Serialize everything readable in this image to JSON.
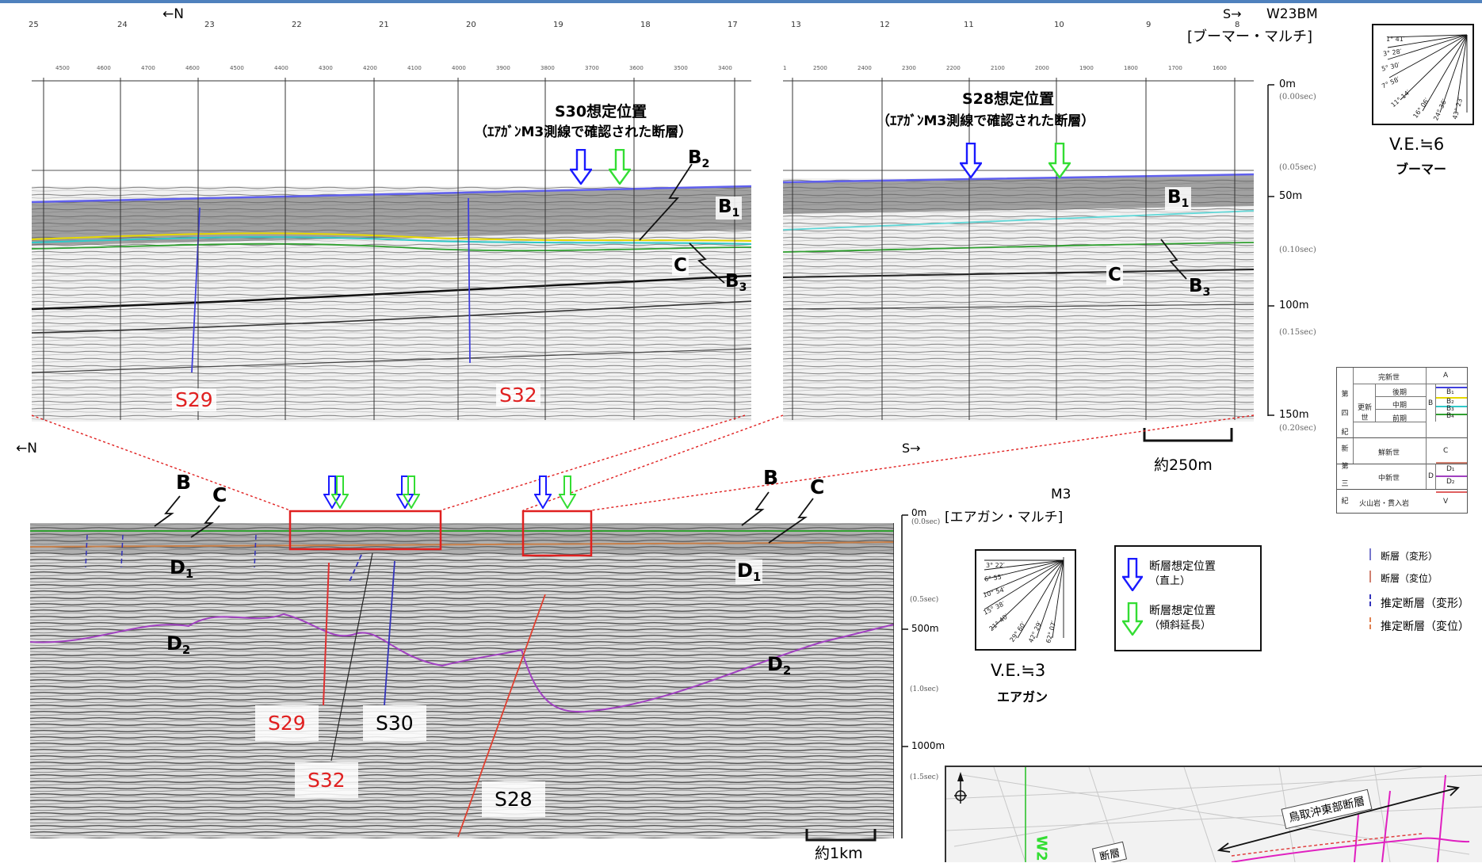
{
  "top_section": {
    "north_label": "←N",
    "south_label": "S→",
    "line_name": "W23BM",
    "source_label": "[ブーマー・マルチ]",
    "shot_numbers_left": [
      "25",
      "24",
      "23",
      "22",
      "21",
      "20",
      "19",
      "18",
      "17"
    ],
    "shot_numbers_right": [
      "13",
      "12",
      "11",
      "10",
      "9",
      "8"
    ],
    "cdp_left": [
      "4500",
      "4600",
      "4700",
      "4600",
      "4500",
      "4400",
      "4300",
      "4200",
      "4100",
      "4000",
      "3900",
      "3800",
      "3700",
      "3600",
      "3500",
      "3400"
    ],
    "cdp_right": [
      "1",
      "2500",
      "2400",
      "2300",
      "2200",
      "2100",
      "2000",
      "1900",
      "1800",
      "1700",
      "1600"
    ],
    "s30_title": "S30想定位置",
    "s30_subtitle": "（ｴｱｶﾞﾝM3測線で確認された断層）",
    "s28_title": "S28想定位置",
    "s28_subtitle": "（ｴｱｶﾞﾝM3測線で確認された断層）",
    "fault_labels": {
      "s29": "S29",
      "s32": "S32"
    },
    "horizons": {
      "b": "B",
      "c": "C",
      "sub1": "1",
      "sub2": "2",
      "sub3": "3"
    },
    "depth_scale": [
      {
        "depth": "0m",
        "time": "(0.00sec)"
      },
      {
        "depth": "",
        "time": "(0.05sec)"
      },
      {
        "depth": "50m",
        "time": ""
      },
      {
        "depth": "",
        "time": "(0.10sec)"
      },
      {
        "depth": "100m",
        "time": ""
      },
      {
        "depth": "",
        "time": "(0.15sec)"
      },
      {
        "depth": "150m",
        "time": "(0.20sec)"
      }
    ],
    "scale_bar_label": "約250m"
  },
  "fan_boomer": {
    "angles": [
      "1° 41′",
      "3° 28′",
      "5° 30′",
      "7° 58′",
      "11° 14′",
      "16° 06′",
      "24° 36′",
      "43° 23′"
    ],
    "ve_label": "V.E.≒6",
    "type_label": "ブーマー"
  },
  "stratigraphy": {
    "era1": [
      "第",
      "四",
      "紀"
    ],
    "era2": [
      "新",
      "第",
      "三",
      "紀"
    ],
    "holocene": "完新世",
    "pleistocene": "更新世",
    "late": "後期",
    "middle": "中期",
    "early": "前期",
    "pliocene": "鮮新世",
    "miocene": "中新世",
    "unit_a": "A",
    "unit_b": "B",
    "unit_c": "C",
    "unit_d": "D",
    "b1": "B₁",
    "b2": "B₂",
    "b3": "B₃",
    "b4": "B₄",
    "d1": "D₁",
    "d2": "D₂",
    "volcanic": "火山岩・貫入岩",
    "unit_v": "V"
  },
  "fault_legend": [
    {
      "label": "断層（変形）",
      "color": "#7777cc"
    },
    {
      "label": "断層（変位）",
      "color": "#d08070"
    },
    {
      "label": "推定断層（変形）",
      "color": "#3333bb"
    },
    {
      "label": "推定断層（変位）",
      "color": "#e08050"
    }
  ],
  "bottom_section": {
    "north_label": "←N",
    "south_label": "S→",
    "line_name": "M3",
    "source_label": "[エアガン・マルチ]",
    "fault_labels": {
      "s29": "S29",
      "s30": "S30",
      "s32": "S32",
      "s28": "S28"
    },
    "horizons": {
      "b": "B",
      "c": "C",
      "d": "D",
      "sub1": "1",
      "sub2": "2"
    },
    "depth_scale": [
      {
        "depth": "0m",
        "time": "(0.0sec)"
      },
      {
        "depth": "",
        "time": "(0.5sec)"
      },
      {
        "depth": "500m",
        "time": ""
      },
      {
        "depth": "",
        "time": "(1.0sec)"
      },
      {
        "depth": "1000m",
        "time": ""
      },
      {
        "depth": "",
        "time": "(1.5sec)"
      }
    ],
    "scale_bar_label": "約1km"
  },
  "fan_airgun": {
    "angles": [
      "3° 22′",
      "6° 55′",
      "10° 54′",
      "15° 38′",
      "21° 40′",
      "29° 60′",
      "42° 29′",
      "62° 07′"
    ],
    "ve_label": "V.E.≒3",
    "type_label": "エアガン"
  },
  "arrow_legend": {
    "blue_label_1": "断層想定位置",
    "blue_label_2": "（直上）",
    "green_label_1": "断層想定位置",
    "green_label_2": "（傾斜延長）",
    "blue_color": "#1a1aff",
    "green_color": "#33dd33"
  },
  "map_inset": {
    "fault_name": "鳥取沖東部断層",
    "partial_label": "断層",
    "line_label": "W2"
  }
}
